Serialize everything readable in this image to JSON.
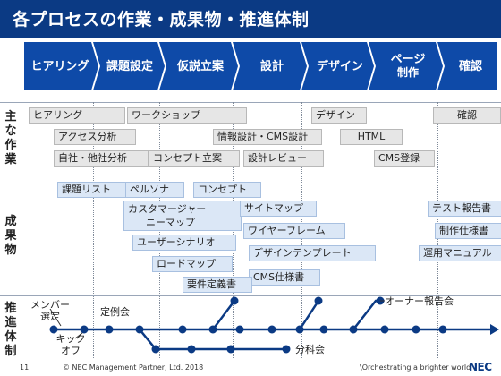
{
  "title": "各プロセスの作業・成果物・推進体制",
  "phases": [
    {
      "l1": "ヒアリング",
      "l2": ""
    },
    {
      "l1": "課題設定",
      "l2": ""
    },
    {
      "l1": "仮説立案",
      "l2": ""
    },
    {
      "l1": "設計",
      "l2": ""
    },
    {
      "l1": "デザイン",
      "l2": ""
    },
    {
      "l1": "ページ",
      "l2": "制作"
    },
    {
      "l1": "確認",
      "l2": ""
    }
  ],
  "row_labels": {
    "tasks": [
      "主",
      "な",
      "作",
      "業"
    ],
    "deliverables": [
      "成",
      "果",
      "物"
    ],
    "structure": [
      "推",
      "進",
      "体",
      "制"
    ]
  },
  "tasks": [
    "ヒアリング",
    "ワークショップ",
    "デザイン",
    "確認",
    "アクセス分析",
    "情報設計・CMS設計",
    "HTML",
    "自社・他社分析",
    "コンセプト立案",
    "設計レビュー",
    "CMS登録"
  ],
  "deliverables": [
    "課題リスト",
    "ペルソナ",
    "コンセプト",
    "テスト報告書",
    "カスタマージャー",
    "ニーマップ",
    "サイトマップ",
    "制作仕様書",
    "ワイヤーフレーム",
    "ユーザーシナリオ",
    "デザインテンプレート",
    "運用マニュアル",
    "ロードマップ",
    "CMS仕様書",
    "要件定義書"
  ],
  "timeline": {
    "member1": "メンバー",
    "member2": "選定",
    "teirei": "定例会",
    "kick1": "キック",
    "kick2": "オフ",
    "bunka": "分科会",
    "owner": "オーナー報告会"
  },
  "footer": {
    "page": "11",
    "copyright": "© NEC Management Partner, Ltd. 2018",
    "tagline": "\\Orchestrating a brighter world",
    "logo": "NEC"
  },
  "colors": {
    "header": "#0b3a84",
    "chevron": "#0e4aa8",
    "timeline": "#0b3a84"
  }
}
